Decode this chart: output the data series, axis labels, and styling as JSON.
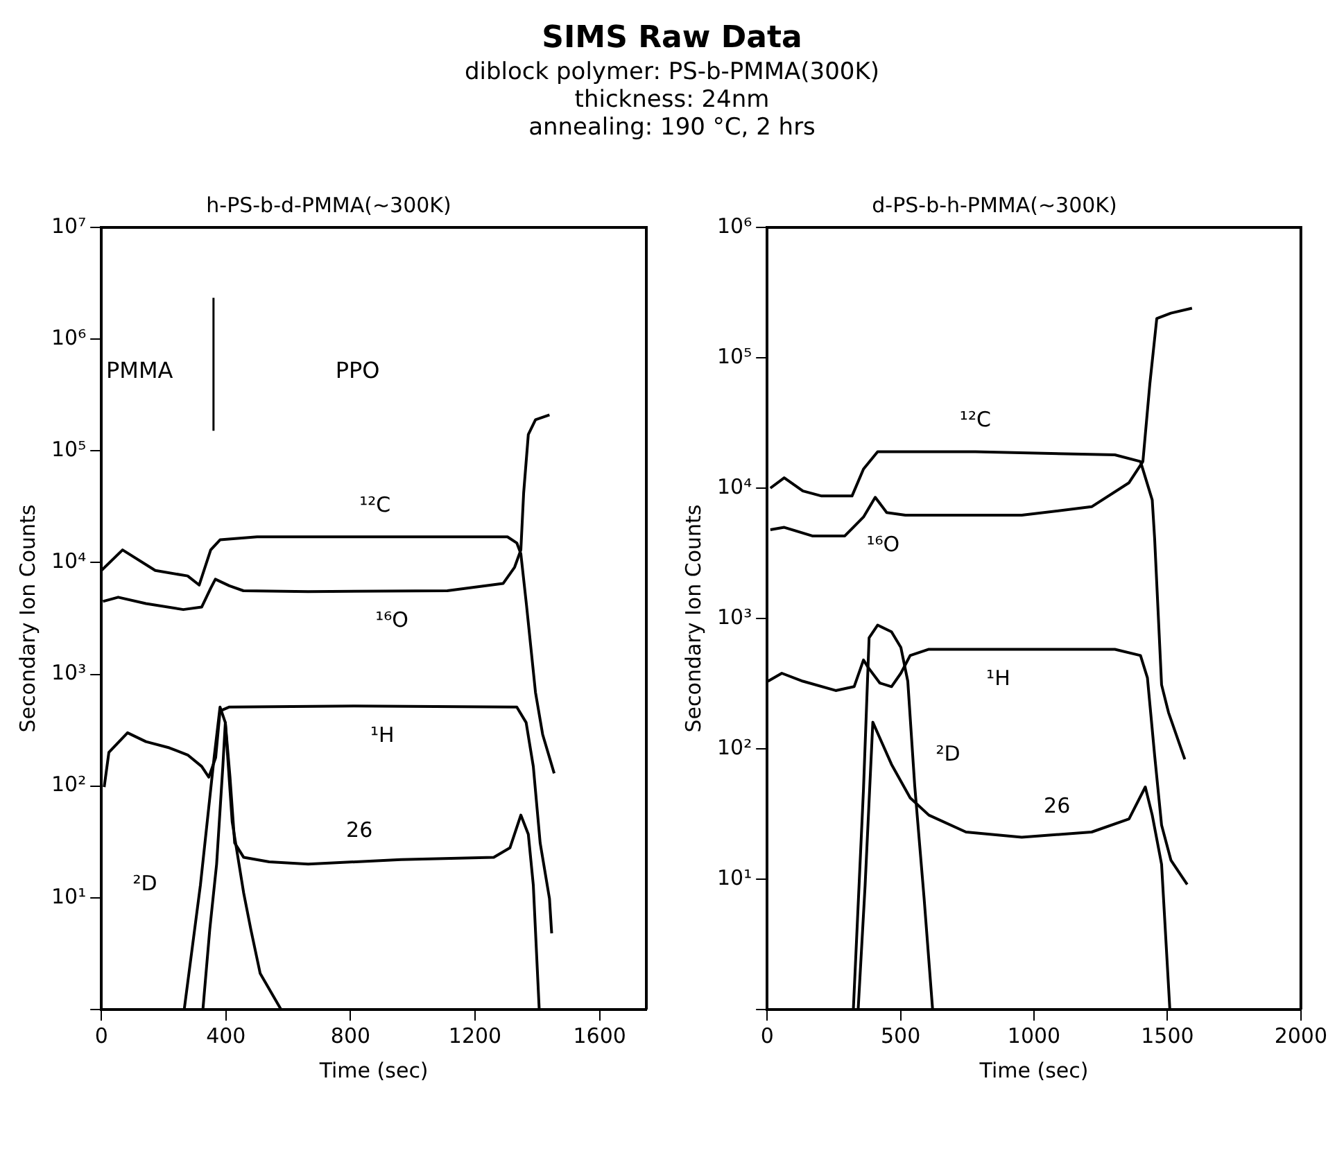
{
  "chart_data": [
    {
      "type": "line",
      "title": "h-PS-b-d-PMMA(~300K)",
      "xlabel": "Time (sec)",
      "ylabel": "Secondary Ion Counts",
      "log": "y",
      "grid": false,
      "legend": false,
      "marker": "none",
      "line_style": "solid",
      "xlim": [
        0,
        1750
      ],
      "xticks": [
        0,
        400,
        800,
        1200,
        1600
      ],
      "ylim": [
        1,
        10000000
      ],
      "yticks": [
        {
          "value": 1,
          "label": null
        },
        {
          "value": 10,
          "label": "10¹"
        },
        {
          "value": 100,
          "label": "10²"
        },
        {
          "value": 1000,
          "label": "10³"
        },
        {
          "value": 10000,
          "label": "10⁴"
        },
        {
          "value": 100000,
          "label": "10⁵"
        },
        {
          "value": 1000000,
          "label": "10⁶"
        },
        {
          "value": 10000000,
          "label": "10⁷"
        }
      ],
      "annotations": [
        "SIMS Raw Data",
        "diblock polymer: PS-b-PMMA(300K)",
        "thickness: 24nm",
        "annealing: 190 °C, 2 hrs",
        "PMMA",
        "PPO"
      ],
      "ref_lines": [
        {
          "axis": "x",
          "value": 360,
          "color": "#000000"
        }
      ],
      "series": [
        {
          "name": "¹²C",
          "color": "#000000",
          "x": [
            0,
            68,
            173,
            277,
            314,
            351,
            381,
            500,
            1000,
            1304,
            1334,
            1347,
            1365,
            1394,
            1417,
            1454
          ],
          "values": [
            8500,
            13000,
            8500,
            7600,
            6300,
            13000,
            16000,
            17000,
            17000,
            17000,
            15000,
            12000,
            4200,
            690,
            290,
            130
          ]
        },
        {
          "name": "¹⁶O",
          "color": "#000000",
          "x": [
            5,
            54,
            143,
            263,
            322,
            351,
            366,
            411,
            456,
            664,
            1111,
            1290,
            1327,
            1347,
            1356,
            1371,
            1394,
            1439
          ],
          "values": [
            4500,
            4900,
            4300,
            3800,
            4000,
            5900,
            7100,
            6200,
            5600,
            5500,
            5600,
            6500,
            9100,
            13000,
            42000,
            140000,
            190000,
            210000
          ]
        },
        {
          "name": "¹H",
          "color": "#000000",
          "x": [
            9,
            24,
            84,
            143,
            218,
            277,
            322,
            345,
            367,
            381,
            411,
            813,
            1334,
            1364,
            1387,
            1409,
            1439,
            1446
          ],
          "values": [
            98,
            200,
            300,
            250,
            220,
            190,
            150,
            120,
            180,
            470,
            510,
            520,
            510,
            370,
            150,
            31,
            9.8,
            4.8
          ]
        },
        {
          "name": "²D",
          "color": "#000000",
          "x": [
            266,
            318,
            362,
            381,
            398,
            420,
            457,
            480,
            510,
            577
          ],
          "values": [
            1,
            13,
            180,
            510,
            370,
            48,
            11,
            5.2,
            2.1,
            1
          ]
        },
        {
          "name": "26",
          "color": "#000000",
          "x": [
            326,
            348,
            370,
            390,
            398,
            413,
            428,
            457,
            539,
            664,
            962,
            1260,
            1312,
            1347,
            1371,
            1387,
            1406
          ],
          "values": [
            1,
            5.2,
            20,
            150,
            370,
            120,
            31,
            23,
            21,
            20,
            22,
            23,
            28,
            55,
            37,
            13,
            1
          ]
        }
      ]
    },
    {
      "type": "line",
      "title": "d-PS-b-h-PMMA(~300K)",
      "xlabel": "Time (sec)",
      "ylabel": "Secondary Ion Counts",
      "log": "y",
      "grid": false,
      "legend": false,
      "marker": "none",
      "line_style": "solid",
      "xlim": [
        0,
        2000
      ],
      "xticks": [
        0,
        500,
        1000,
        1500,
        2000
      ],
      "ylim": [
        1,
        1000000
      ],
      "yticks": [
        {
          "value": 1,
          "label": null
        },
        {
          "value": 10,
          "label": "10¹"
        },
        {
          "value": 100,
          "label": "10²"
        },
        {
          "value": 1000,
          "label": "10³"
        },
        {
          "value": 10000,
          "label": "10⁴"
        },
        {
          "value": 100000,
          "label": "10⁵"
        },
        {
          "value": 1000000,
          "label": "10⁶"
        }
      ],
      "series": [
        {
          "name": "¹²C",
          "color": "#000000",
          "x": [
            12,
            64,
            134,
            204,
            318,
            361,
            414,
            780,
            1303,
            1399,
            1443,
            1452,
            1478,
            1504,
            1565
          ],
          "values": [
            10000,
            12000,
            9500,
            8700,
            8700,
            14000,
            19000,
            19000,
            18000,
            16000,
            8100,
            4100,
            310,
            190,
            83
          ]
        },
        {
          "name": "¹⁶O",
          "color": "#000000",
          "x": [
            12,
            64,
            169,
            291,
            361,
            405,
            448,
            518,
            954,
            1216,
            1356,
            1408,
            1434,
            1460,
            1513,
            1592
          ],
          "values": [
            4800,
            5000,
            4300,
            4300,
            6000,
            8500,
            6500,
            6200,
            6200,
            7200,
            11000,
            16000,
            63000,
            200000,
            220000,
            240000
          ]
        },
        {
          "name": "¹H",
          "color": "#000000",
          "x": [
            3,
            55,
            134,
            257,
            326,
            361,
            379,
            422,
            466,
            501,
            536,
            606,
            1303,
            1399,
            1425,
            1452,
            1478,
            1513,
            1574
          ],
          "values": [
            330,
            380,
            330,
            280,
            300,
            480,
            420,
            320,
            300,
            380,
            520,
            580,
            580,
            520,
            350,
            89,
            26,
            14,
            9.1
          ]
        },
        {
          "name": "²D",
          "color": "#000000",
          "x": [
            323,
            361,
            382,
            414,
            466,
            501,
            527,
            553,
            588,
            620
          ],
          "values": [
            1,
            49,
            710,
            890,
            790,
            600,
            330,
            52,
            7.2,
            1
          ]
        },
        {
          "name": "26",
          "color": "#000000",
          "x": [
            341,
            367,
            396,
            466,
            536,
            606,
            745,
            954,
            1216,
            1356,
            1417,
            1443,
            1478,
            1509
          ],
          "values": [
            1,
            8.9,
            160,
            76,
            42,
            31,
            23,
            21,
            23,
            29,
            51,
            31,
            13,
            1
          ]
        }
      ]
    }
  ]
}
